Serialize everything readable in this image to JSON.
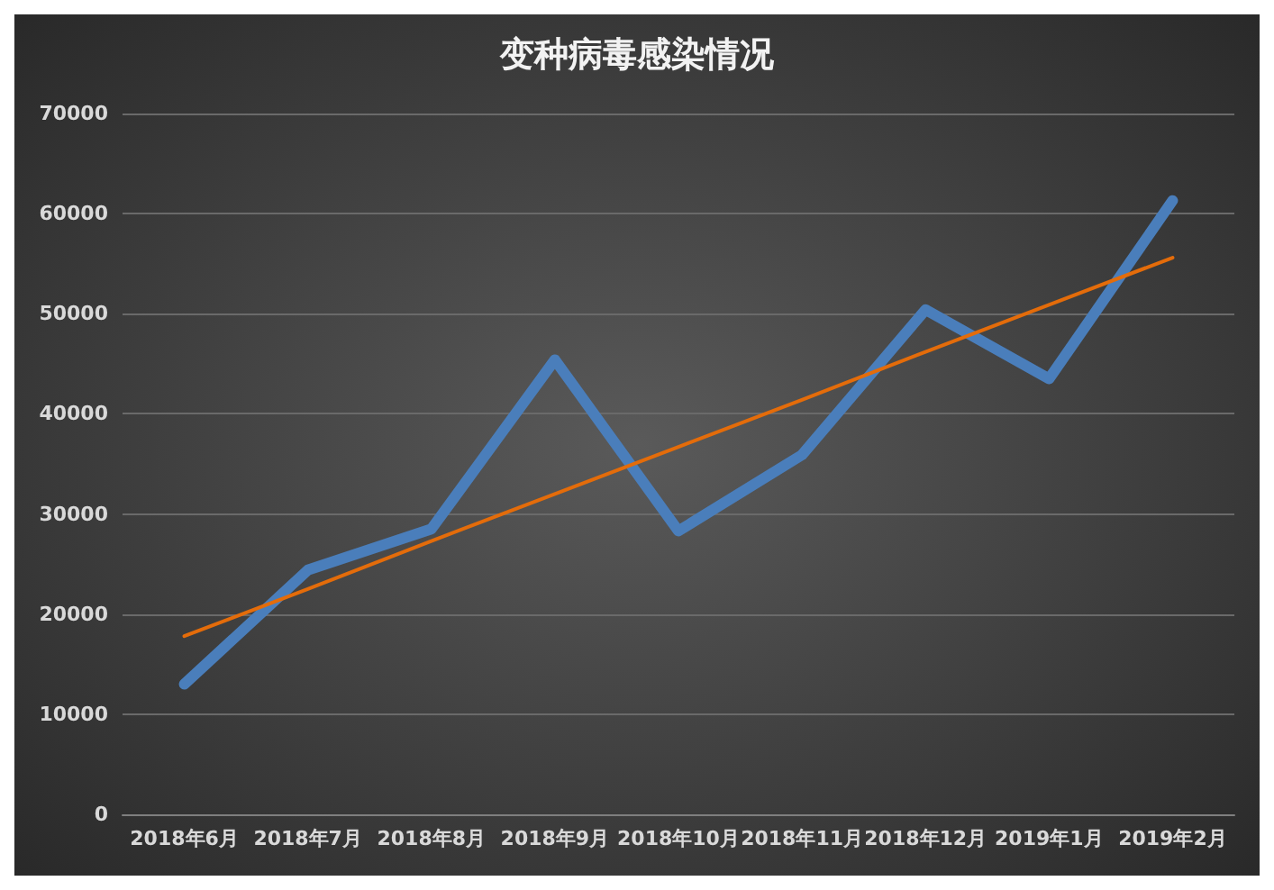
{
  "chart_data": {
    "type": "line",
    "title": "变种病毒感染情况",
    "categories": [
      "2018年6月",
      "2018年7月",
      "2018年8月",
      "2018年9月",
      "2018年10月",
      "2018年11月",
      "2018年12月",
      "2019年1月",
      "2019年2月"
    ],
    "series": [
      {
        "color": "#4a7ebb",
        "values": [
          13000,
          24400,
          28500,
          45400,
          28300,
          35900,
          50400,
          43500,
          61300
        ]
      },
      {
        "color": "#e46c0a",
        "values": [
          17800,
          22500,
          27300,
          32000,
          36700,
          41400,
          46200,
          50900,
          55600
        ]
      }
    ],
    "ylim": [
      0,
      70000
    ],
    "yticks": [
      0,
      10000,
      20000,
      30000,
      40000,
      50000,
      60000,
      70000
    ],
    "grid": "y",
    "marker": "none",
    "line_style": "solid"
  }
}
